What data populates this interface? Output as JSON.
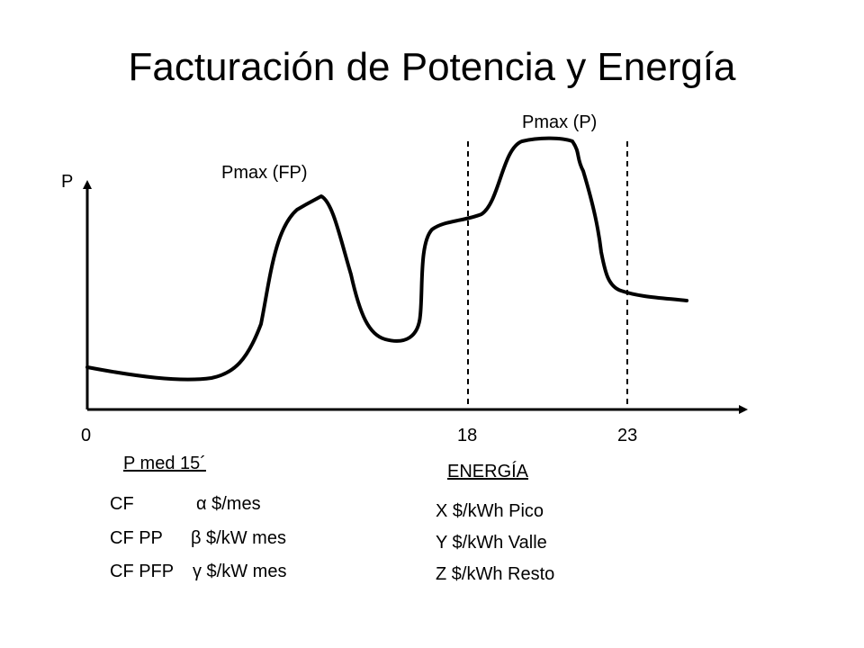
{
  "title": "Facturación de Potencia y Energía",
  "diagram": {
    "y_axis_label": "P",
    "x_ticks": [
      "0",
      "18",
      "23"
    ],
    "annotations": {
      "peak_off_peak": "Pmax (FP)",
      "peak_peak": "Pmax (P)"
    }
  },
  "power": {
    "heading": "P med 15´",
    "rows": [
      {
        "name": "CF",
        "rate": "α $/mes"
      },
      {
        "name": "CF PP",
        "rate": "β $/kW mes"
      },
      {
        "name": "CF PFP",
        "rate": "γ $/kW mes"
      }
    ]
  },
  "energy": {
    "heading": "ENERGÍA",
    "rows": [
      "X $/kWh Pico",
      "Y $/kWh Valle",
      "Z $/kWh Resto"
    ]
  },
  "colors": {
    "line": "#000000",
    "background": "#ffffff"
  }
}
